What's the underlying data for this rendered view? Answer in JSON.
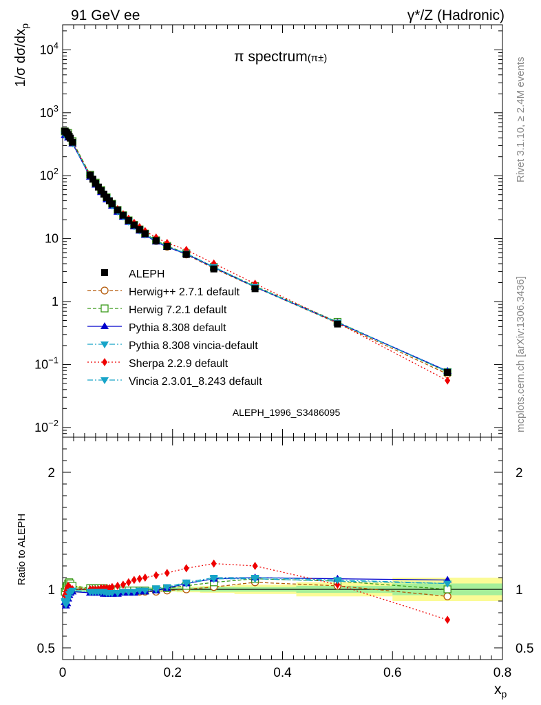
{
  "header": {
    "left": "91 GeV ee",
    "right": "γ*/Z (Hadronic)"
  },
  "side_labels": {
    "rivet": "Rivet 3.1.10, ≥ 2.4M events",
    "mcplots": "mcplots.cern.ch [arXiv:1306.3436]"
  },
  "colors": {
    "ALEPH": "#000000",
    "herwigpp": "#b35806",
    "herwig7": "#3a9a1a",
    "pythia": "#0000cc",
    "pythia_vincia": "#17a4c8",
    "sherpa": "#ee0000",
    "vincia": "#17a4c8",
    "band_inner": "#a6ef9a",
    "band_outer": "#fbfb96"
  },
  "chart_data": [
    {
      "type": "line",
      "log_y": true,
      "title": "π spectrum",
      "title_superscript": "(π±)",
      "ylabel": "1/σ dσ/dx_p",
      "ylabel_main": "1/σ dσ/dx",
      "ylabel_sub": "p",
      "xlim": [
        0,
        0.8
      ],
      "ylim": [
        0.007,
        25000
      ],
      "y_ticks": [
        {
          "value": 10000,
          "base": "10",
          "exp": "4"
        },
        {
          "value": 1000,
          "base": "10",
          "exp": "3"
        },
        {
          "value": 100,
          "base": "10",
          "exp": "2"
        },
        {
          "value": 10,
          "base": "10",
          "exp": ""
        },
        {
          "value": 1,
          "base": "1",
          "exp": ""
        },
        {
          "value": 0.1,
          "base": "10",
          "exp": "−1"
        },
        {
          "value": 0.01,
          "base": "10",
          "exp": "−2"
        }
      ],
      "watermark": "ALEPH_1996_S3486095",
      "x": [
        0.004,
        0.006,
        0.008,
        0.01,
        0.012,
        0.014,
        0.018,
        0.05,
        0.055,
        0.06,
        0.065,
        0.07,
        0.075,
        0.08,
        0.085,
        0.09,
        0.1,
        0.11,
        0.12,
        0.13,
        0.14,
        0.15,
        0.17,
        0.19,
        0.225,
        0.275,
        0.35,
        0.5,
        0.7
      ],
      "reference": {
        "name": "ALEPH",
        "values": [
          510,
          495,
          475,
          450,
          420,
          395,
          340,
          102,
          88,
          76,
          66,
          58,
          51,
          45,
          40,
          35.5,
          28.5,
          23.5,
          19.5,
          16.5,
          14.0,
          12.0,
          9.3,
          7.5,
          5.6,
          3.3,
          1.6,
          0.44,
          0.075
        ]
      },
      "series": [
        {
          "name": "Herwig++ 2.7.1 default",
          "key": "herwigpp",
          "marker": "circle-open",
          "dash": "5,3"
        },
        {
          "name": "Herwig 7.2.1 default",
          "key": "herwig7",
          "marker": "square-open",
          "dash": "5,3"
        },
        {
          "name": "Pythia 8.308 default",
          "key": "pythia",
          "marker": "triangle-up",
          "dash": ""
        },
        {
          "name": "Pythia 8.308 vincia-default",
          "key": "pythia_vincia",
          "marker": "triangle-down",
          "dash": "8,3,2,3"
        },
        {
          "name": "Sherpa 2.2.9 default",
          "key": "sherpa",
          "marker": "diamond",
          "dash": "2,3"
        },
        {
          "name": "Vincia 2.3.01_8.243 default",
          "key": "vincia",
          "marker": "triangle-down",
          "dash": "8,3,2,3"
        }
      ]
    },
    {
      "type": "line",
      "title": "",
      "xlabel": "x_p",
      "xlabel_main": "x",
      "xlabel_sub": "p",
      "ylabel": "Ratio to ALEPH",
      "xlim": [
        0,
        0.8
      ],
      "ylim": [
        0.4,
        2.3
      ],
      "y_ticks": [
        0.5,
        1,
        2
      ],
      "x_ticks": [
        0,
        0.2,
        0.4,
        0.6,
        0.8
      ],
      "x_tick_labels": [
        "0",
        "0.2",
        "0.4",
        "0.6",
        "0.8"
      ],
      "y_tick_labels": [
        "0.5",
        "1",
        "2"
      ],
      "x": [
        0.004,
        0.006,
        0.008,
        0.01,
        0.012,
        0.014,
        0.018,
        0.05,
        0.055,
        0.06,
        0.065,
        0.07,
        0.075,
        0.08,
        0.085,
        0.09,
        0.1,
        0.11,
        0.12,
        0.13,
        0.14,
        0.15,
        0.17,
        0.19,
        0.225,
        0.275,
        0.35,
        0.5,
        0.7
      ],
      "bands": {
        "inner": [
          0.02,
          0.02,
          0.02,
          0.02,
          0.02,
          0.02,
          0.02,
          0.015,
          0.015,
          0.015,
          0.015,
          0.015,
          0.015,
          0.015,
          0.015,
          0.015,
          0.015,
          0.015,
          0.015,
          0.015,
          0.015,
          0.015,
          0.015,
          0.015,
          0.015,
          0.02,
          0.02,
          0.03,
          0.05
        ],
        "outer": [
          0.03,
          0.03,
          0.03,
          0.03,
          0.03,
          0.03,
          0.03,
          0.02,
          0.02,
          0.02,
          0.02,
          0.02,
          0.02,
          0.02,
          0.02,
          0.02,
          0.02,
          0.02,
          0.02,
          0.02,
          0.02,
          0.02,
          0.02,
          0.02,
          0.025,
          0.03,
          0.04,
          0.06,
          0.1
        ]
      },
      "series": [
        {
          "name": "Herwig++ 2.7.1 default",
          "key": "herwigpp",
          "values": [
            0.97,
            1.0,
            1.03,
            1.05,
            1.05,
            1.04,
            1.02,
            1.0,
            1.0,
            1.0,
            1.0,
            1.0,
            1.0,
            0.99,
            0.99,
            0.99,
            0.98,
            0.98,
            0.98,
            0.98,
            0.98,
            0.98,
            0.98,
            0.99,
            1.0,
            1.02,
            1.06,
            1.03,
            0.94
          ]
        },
        {
          "name": "Herwig 7.2.1 default",
          "key": "herwig7",
          "values": [
            0.98,
            1.01,
            1.03,
            1.05,
            1.06,
            1.05,
            1.03,
            1.01,
            1.01,
            1.01,
            1.01,
            1.01,
            1.01,
            1.0,
            1.0,
            1.0,
            0.99,
            0.99,
            0.99,
            0.99,
            0.99,
            0.99,
            1.0,
            1.01,
            1.03,
            1.06,
            1.09,
            1.07,
            1.0
          ]
        },
        {
          "name": "Pythia 8.308 default",
          "key": "pythia",
          "values": [
            0.89,
            0.86,
            0.88,
            0.92,
            0.95,
            0.97,
            0.98,
            0.97,
            0.97,
            0.97,
            0.97,
            0.97,
            0.96,
            0.96,
            0.96,
            0.96,
            0.96,
            0.97,
            0.97,
            0.97,
            0.98,
            0.98,
            0.99,
            1.01,
            1.05,
            1.09,
            1.1,
            1.09,
            1.08
          ]
        },
        {
          "name": "Pythia 8.308 vincia-default",
          "key": "pythia_vincia",
          "values": [
            0.9,
            0.88,
            0.9,
            0.93,
            0.96,
            0.98,
            0.99,
            0.98,
            0.98,
            0.98,
            0.98,
            0.98,
            0.98,
            0.97,
            0.97,
            0.97,
            0.97,
            0.98,
            0.98,
            0.98,
            0.99,
            0.99,
            1.0,
            1.02,
            1.05,
            1.09,
            1.09,
            1.07,
            1.05
          ]
        },
        {
          "name": "Sherpa 2.2.9 default",
          "key": "sherpa",
          "values": [
            0.95,
            0.98,
            1.01,
            1.03,
            1.02,
            1.01,
            1.0,
            1.0,
            1.0,
            1.0,
            1.0,
            1.01,
            1.01,
            1.01,
            1.01,
            1.02,
            1.03,
            1.04,
            1.06,
            1.08,
            1.09,
            1.1,
            1.12,
            1.14,
            1.18,
            1.22,
            1.2,
            1.04,
            0.74
          ]
        },
        {
          "name": "Vincia 2.3.01_8.243 default",
          "key": "vincia",
          "values": [
            0.89,
            0.87,
            0.9,
            0.93,
            0.96,
            0.98,
            0.99,
            0.98,
            0.98,
            0.98,
            0.98,
            0.98,
            0.98,
            0.97,
            0.97,
            0.97,
            0.97,
            0.98,
            0.98,
            0.98,
            0.99,
            0.99,
            1.01,
            1.02,
            1.06,
            1.1,
            1.1,
            1.08,
            1.05
          ]
        }
      ]
    }
  ]
}
